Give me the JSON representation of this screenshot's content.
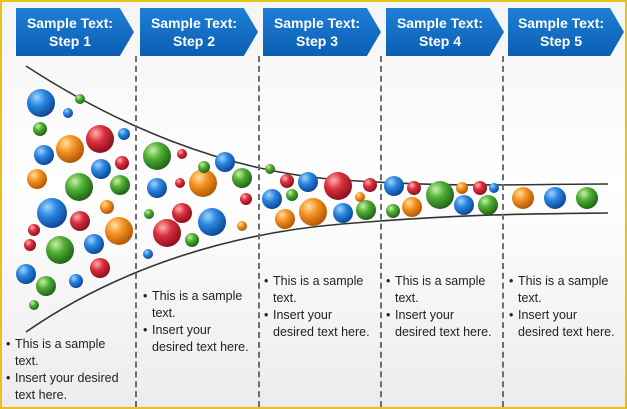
{
  "steps": [
    {
      "label": "Sample Text:\nStep 1"
    },
    {
      "label": "Sample Text:\nStep 2"
    },
    {
      "label": "Sample Text:\nStep 3"
    },
    {
      "label": "Sample Text:\nStep 4"
    },
    {
      "label": "Sample Text:\nStep 5"
    }
  ],
  "columns": [
    {
      "bullets": [
        "This is a sample text.",
        "Insert your desired text here."
      ]
    },
    {
      "bullets": [
        "This is a sample text.",
        "Insert your desired text here."
      ]
    },
    {
      "bullets": [
        "This is a sample text.",
        "Insert your desired text here."
      ]
    },
    {
      "bullets": [
        "This is a sample text.",
        "Insert your desired text here."
      ]
    },
    {
      "bullets": [
        "This is a sample text.",
        "Insert your desired text here."
      ]
    }
  ],
  "colors": {
    "step_fill": "#0b5fb3",
    "border": "#e6c21a",
    "funnel_line": "#333333",
    "bubble_blue": "#1f77d8",
    "bubble_green": "#4aa832",
    "bubble_orange": "#f08a1c",
    "bubble_red": "#d62a3a"
  }
}
